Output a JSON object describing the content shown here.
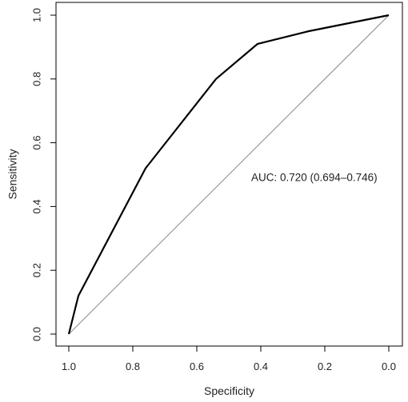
{
  "chart_data": {
    "type": "line",
    "title": "",
    "xlabel": "Specificity",
    "ylabel": "Sensitivity",
    "x_reversed": true,
    "xlim": [
      1.0,
      0.0
    ],
    "ylim": [
      0.0,
      1.0
    ],
    "x_ticks": [
      {
        "value": 1.0,
        "label": "1.0"
      },
      {
        "value": 0.8,
        "label": "0.8"
      },
      {
        "value": 0.6,
        "label": "0.6"
      },
      {
        "value": 0.4,
        "label": "0.4"
      },
      {
        "value": 0.2,
        "label": "0.2"
      },
      {
        "value": 0.0,
        "label": "0.0"
      }
    ],
    "y_ticks": [
      {
        "value": 0.0,
        "label": "0.0"
      },
      {
        "value": 0.2,
        "label": "0.2"
      },
      {
        "value": 0.4,
        "label": "0.4"
      },
      {
        "value": 0.6,
        "label": "0.6"
      },
      {
        "value": 0.8,
        "label": "0.8"
      },
      {
        "value": 1.0,
        "label": "1.0"
      }
    ],
    "grid": false,
    "legend": "none",
    "series": [
      {
        "x": [
          1.0,
          0.97,
          0.76,
          0.54,
          0.41,
          0.25,
          0.0
        ],
        "y": [
          0.0,
          0.12,
          0.52,
          0.8,
          0.91,
          0.95,
          1.0
        ],
        "color": "#000000"
      }
    ],
    "reference_line": {
      "x": [
        1.0,
        0.0
      ],
      "y": [
        0.0,
        1.0
      ],
      "color": "#888888"
    },
    "annotations": [
      {
        "text": "AUC: 0.720 (0.694–0.746)",
        "x": 0.43,
        "y": 0.48
      }
    ]
  }
}
